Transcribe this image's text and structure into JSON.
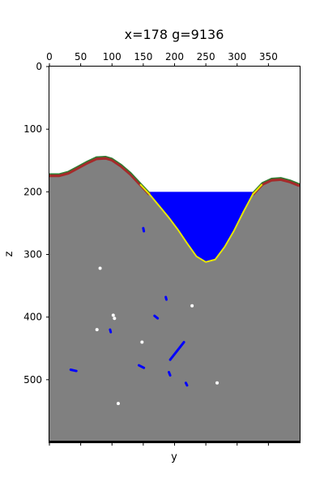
{
  "chart_data": {
    "type": "heatmap",
    "title": "x=178 g=9136",
    "xlabel": "y",
    "ylabel": "z",
    "x_tick_position": "top",
    "x_ticks": [
      0,
      50,
      100,
      150,
      200,
      250,
      300,
      350
    ],
    "y_ticks": [
      0,
      100,
      200,
      300,
      400,
      500
    ],
    "xlim": [
      0,
      400
    ],
    "ylim": [
      600,
      0
    ],
    "y_inverted": true,
    "grid": false,
    "legend": "none",
    "water_level_z": 200,
    "terrain_surface": {
      "y": [
        0,
        15,
        30,
        45,
        60,
        75,
        90,
        100,
        115,
        130,
        145,
        160,
        175,
        190,
        205,
        220,
        235,
        250,
        265,
        280,
        295,
        310,
        325,
        340,
        355,
        370,
        385,
        400
      ],
      "z": [
        174,
        174,
        170,
        162,
        154,
        147,
        146,
        149,
        159,
        172,
        188,
        204,
        222,
        240,
        260,
        282,
        303,
        312,
        308,
        288,
        262,
        232,
        204,
        188,
        181,
        180,
        184,
        190
      ]
    },
    "holes": [
      [
        81,
        322
      ],
      [
        102,
        397
      ],
      [
        104,
        402
      ],
      [
        76,
        420
      ],
      [
        148,
        440
      ],
      [
        228,
        382
      ],
      [
        268,
        505
      ],
      [
        110,
        538
      ]
    ],
    "water_pockets": [
      [
        150,
        258,
        151,
        263
      ],
      [
        186,
        368,
        187,
        372
      ],
      [
        168,
        398,
        173,
        402
      ],
      [
        97,
        420,
        98,
        424
      ],
      [
        143,
        477,
        151,
        481
      ],
      [
        34,
        484,
        43,
        486
      ],
      [
        193,
        468,
        215,
        440
      ],
      [
        191,
        488,
        193,
        493
      ],
      [
        218,
        505,
        220,
        509
      ]
    ],
    "colors": {
      "rock": "#808080",
      "water": "#0000ff",
      "grass": "#2e7d32",
      "soil": "#a52a2a",
      "sand": "#e6e600",
      "hole": "#ffffff",
      "sky": "#ffffff",
      "bedrock": "#000000"
    }
  }
}
